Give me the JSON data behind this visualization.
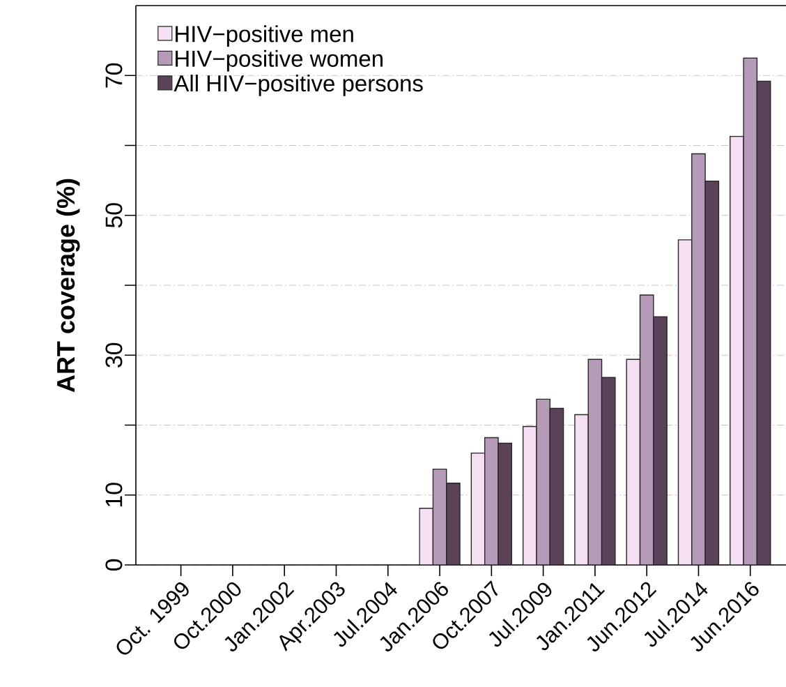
{
  "chart_data": {
    "type": "bar",
    "ylabel": "ART coverage (%)",
    "categories": [
      "Oct. 1999",
      "Oct.2000",
      "Jan.2002",
      "Apr.2003",
      "Jul.2004",
      "Jan.2006",
      "Oct.2007",
      "Jul.2009",
      "Jan.2011",
      "Jun.2012",
      "Jul.2014",
      "Jun.2016"
    ],
    "series": [
      {
        "name": "HIV−positive men",
        "color": "#f5dff2",
        "values": [
          null,
          null,
          null,
          null,
          null,
          8.1,
          16.0,
          19.8,
          21.5,
          29.4,
          46.5,
          61.3
        ]
      },
      {
        "name": "HIV−positive women",
        "color": "#b59bb8",
        "values": [
          null,
          null,
          null,
          null,
          null,
          13.7,
          18.2,
          23.7,
          29.4,
          38.6,
          58.8,
          72.5
        ]
      },
      {
        "name": "All HIV−positive persons",
        "color": "#5a4259",
        "values": [
          null,
          null,
          null,
          null,
          null,
          11.7,
          17.4,
          22.4,
          26.8,
          35.5,
          54.9,
          69.2
        ]
      }
    ],
    "ylim": [
      0,
      80
    ],
    "yticks": [
      0,
      10,
      {
        "value": 20,
        "label": null
      },
      30,
      {
        "value": 40,
        "label": null
      },
      50,
      {
        "value": 60,
        "label": null
      },
      70
    ],
    "grid": "y",
    "legend": "top left"
  }
}
